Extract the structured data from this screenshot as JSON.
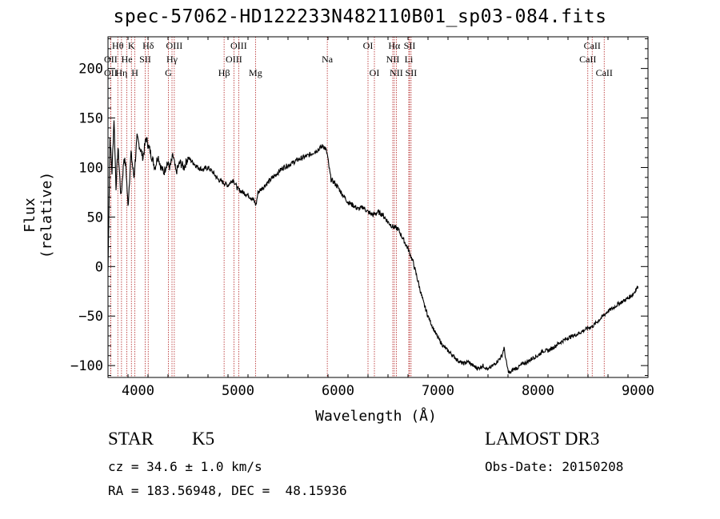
{
  "chart_data": {
    "type": "line",
    "title": "spec-57062-HD122233N482110B01_sp03-084.fits",
    "xlabel": "Wavelength (Å)",
    "ylabel": "Flux (relative)",
    "xlim": [
      3700,
      9100
    ],
    "ylim": [
      -112,
      232
    ],
    "x_ticks": [
      4000,
      5000,
      6000,
      7000,
      8000,
      9000
    ],
    "y_ticks": [
      -100,
      -50,
      0,
      50,
      100,
      150,
      200
    ],
    "grid": false,
    "series": [
      {
        "x": [
          3700,
          3720,
          3740,
          3760,
          3780,
          3800,
          3830,
          3860,
          3880,
          3900,
          3930,
          3960,
          3990,
          4020,
          4050,
          4080,
          4110,
          4140,
          4170,
          4200,
          4230,
          4260,
          4290,
          4320,
          4350,
          4380,
          4420,
          4460,
          4500,
          4550,
          4600,
          4650,
          4700,
          4750,
          4800,
          4850,
          4900,
          4950,
          5000,
          5050,
          5100,
          5150,
          5180,
          5200,
          5250,
          5300,
          5350,
          5400,
          5450,
          5500,
          5550,
          5600,
          5650,
          5700,
          5750,
          5800,
          5850,
          5880,
          5895,
          5910,
          5930,
          5960,
          6000,
          6050,
          6100,
          6150,
          6200,
          6250,
          6300,
          6350,
          6400,
          6450,
          6500,
          6550,
          6600,
          6650,
          6700,
          6750,
          6800,
          6850,
          6900,
          6950,
          7000,
          7050,
          7100,
          7150,
          7200,
          7250,
          7300,
          7350,
          7400,
          7450,
          7500,
          7550,
          7600,
          7640,
          7660,
          7680,
          7700,
          7720,
          7750,
          7800,
          7850,
          7900,
          7950,
          8000,
          8050,
          8100,
          8150,
          8200,
          8250,
          8300,
          8350,
          8400,
          8450,
          8500,
          8550,
          8600,
          8650,
          8700,
          8750,
          8800,
          8850,
          8900,
          8950,
          9000
        ],
        "y": [
          -5,
          130,
          95,
          150,
          80,
          120,
          70,
          110,
          100,
          60,
          115,
          90,
          130,
          120,
          110,
          130,
          120,
          110,
          100,
          112,
          100,
          95,
          105,
          100,
          112,
          95,
          105,
          100,
          110,
          105,
          100,
          98,
          100,
          95,
          88,
          85,
          82,
          88,
          78,
          75,
          72,
          68,
          62,
          75,
          80,
          85,
          90,
          95,
          100,
          102,
          105,
          108,
          110,
          112,
          115,
          118,
          122,
          118,
          112,
          100,
          88,
          85,
          80,
          72,
          65,
          62,
          58,
          60,
          55,
          52,
          55,
          52,
          45,
          40,
          38,
          28,
          18,
          5,
          -15,
          -35,
          -50,
          -62,
          -72,
          -80,
          -85,
          -90,
          -95,
          -98,
          -96,
          -100,
          -103,
          -100,
          -104,
          -100,
          -95,
          -90,
          -82,
          -95,
          -105,
          -108,
          -104,
          -102,
          -98,
          -96,
          -92,
          -90,
          -85,
          -85,
          -82,
          -78,
          -75,
          -72,
          -70,
          -68,
          -65,
          -62,
          -60,
          -55,
          -50,
          -45,
          -42,
          -38,
          -35,
          -32,
          -28,
          -20
        ]
      }
    ],
    "lines": [
      {
        "label": "Hθ",
        "x": 3798,
        "row": 0
      },
      {
        "label": "OII",
        "x": 3727,
        "row": 1
      },
      {
        "label": "OII",
        "x": 3727,
        "row": 2
      },
      {
        "label": "K",
        "x": 3934,
        "row": 0
      },
      {
        "label": "He",
        "x": 3889,
        "row": 1
      },
      {
        "label": "Hη",
        "x": 3835,
        "row": 2
      },
      {
        "label": "Hδ",
        "x": 4102,
        "row": 0
      },
      {
        "label": "SII",
        "x": 4072,
        "row": 1
      },
      {
        "label": "H",
        "x": 3969,
        "row": 2
      },
      {
        "label": "OIII",
        "x": 4363,
        "row": 0
      },
      {
        "label": "Hγ",
        "x": 4340,
        "row": 1
      },
      {
        "label": "G",
        "x": 4304,
        "row": 2
      },
      {
        "label": "OIII",
        "x": 5007,
        "row": 0
      },
      {
        "label": "OIII",
        "x": 4959,
        "row": 1
      },
      {
        "label": "Hβ",
        "x": 4861,
        "row": 2
      },
      {
        "label": "Mg",
        "x": 5175,
        "row": 2
      },
      {
        "label": "Na",
        "x": 5893,
        "row": 1
      },
      {
        "label": "OI",
        "x": 6300,
        "row": 0
      },
      {
        "label": "OI",
        "x": 6364,
        "row": 2
      },
      {
        "label": "Hα",
        "x": 6563,
        "row": 0
      },
      {
        "label": "NII",
        "x": 6548,
        "row": 1
      },
      {
        "label": "NII",
        "x": 6583,
        "row": 2
      },
      {
        "label": "SII",
        "x": 6716,
        "row": 0
      },
      {
        "label": "Li",
        "x": 6708,
        "row": 1
      },
      {
        "label": "SII",
        "x": 6731,
        "row": 2
      },
      {
        "label": "CaII",
        "x": 8542,
        "row": 0
      },
      {
        "label": "CaII",
        "x": 8498,
        "row": 1
      },
      {
        "label": "CaII",
        "x": 8662,
        "row": 2
      }
    ]
  },
  "info": {
    "object_type": "STAR",
    "subclass": "K5",
    "survey": "LAMOST DR3",
    "cz": "cz = 34.6 ± 1.0 km/s",
    "obs_date": "Obs-Date: 20150208",
    "coords": "RA = 183.56948, DEC =  48.15936"
  },
  "colors": {
    "spectrum": "#000000",
    "line_markers": "#b22222"
  }
}
